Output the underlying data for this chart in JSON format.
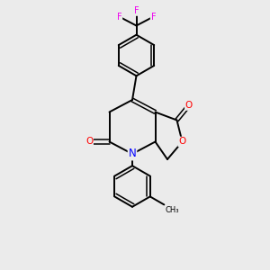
{
  "background_color": "#ebebeb",
  "bond_color": "#000000",
  "atom_colors": {
    "F": "#ee00ee",
    "O": "#ff0000",
    "N": "#0000ff",
    "C": "#000000"
  },
  "figsize": [
    3.0,
    3.0
  ],
  "dpi": 100
}
